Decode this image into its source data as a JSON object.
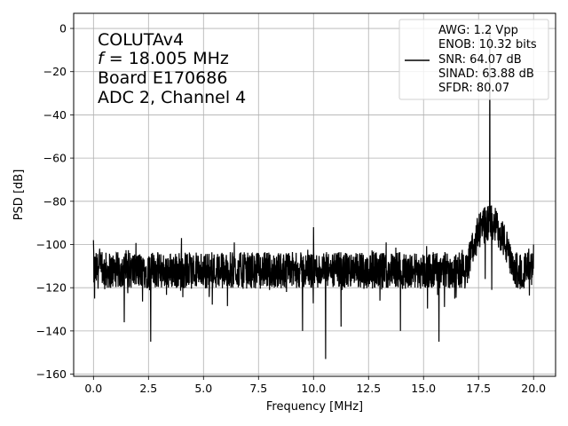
{
  "chart_data": {
    "type": "line",
    "xlabel": "Frequency [MHz]",
    "ylabel": "PSD [dB]",
    "xlim": [
      -0.9,
      21.0
    ],
    "ylim": [
      -161,
      7
    ],
    "xticks": [
      0.0,
      2.5,
      5.0,
      7.5,
      10.0,
      12.5,
      15.0,
      17.5,
      20.0
    ],
    "xtick_labels": [
      "0.0",
      "2.5",
      "5.0",
      "7.5",
      "10.0",
      "12.5",
      "15.0",
      "17.5",
      "20.0"
    ],
    "yticks": [
      0,
      -20,
      -40,
      -60,
      -80,
      -100,
      -120,
      -140,
      -160
    ],
    "ytick_labels": [
      "0",
      "−20",
      "−40",
      "−60",
      "−80",
      "−100",
      "−120",
      "−140",
      "−160"
    ],
    "grid": true,
    "annotation": {
      "line1": "COLUTAv4",
      "line2_var": "f",
      "line2_rest": " = 18.005 MHz",
      "line3": "Board E170686",
      "line4": "ADC 2, Channel 4"
    },
    "legend": {
      "position": "top-right",
      "lines": [
        "AWG: 1.2 Vpp",
        "ENOB: 10.32 bits",
        "SNR: 64.07 dB",
        "SINAD: 63.88 dB",
        "SFDR: 80.07"
      ]
    },
    "series": [
      {
        "color": "#000000",
        "noise_floor": -112,
        "noise_band": [
          -122,
          -102
        ],
        "signal": {
          "x": 18.005,
          "y": -0.2
        },
        "hump": {
          "x_range": [
            17.0,
            19.0
          ],
          "center": 18.0,
          "peak_level": -90
        },
        "spurs": [
          {
            "x": 0.0,
            "y": -98
          },
          {
            "x": 0.05,
            "y": -125
          },
          {
            "x": 1.4,
            "y": -136
          },
          {
            "x": 2.6,
            "y": -145
          },
          {
            "x": 4.0,
            "y": -97
          },
          {
            "x": 6.4,
            "y": -99
          },
          {
            "x": 9.5,
            "y": -140
          },
          {
            "x": 10.0,
            "y": -92
          },
          {
            "x": 10.55,
            "y": -153
          },
          {
            "x": 11.25,
            "y": -138
          },
          {
            "x": 13.3,
            "y": -99
          },
          {
            "x": 13.95,
            "y": -140
          },
          {
            "x": 15.7,
            "y": -145
          },
          {
            "x": 17.8,
            "y": -116
          },
          {
            "x": 18.1,
            "y": -121
          },
          {
            "x": 19.05,
            "y": -113
          },
          {
            "x": 20.0,
            "y": -100
          }
        ]
      }
    ]
  }
}
